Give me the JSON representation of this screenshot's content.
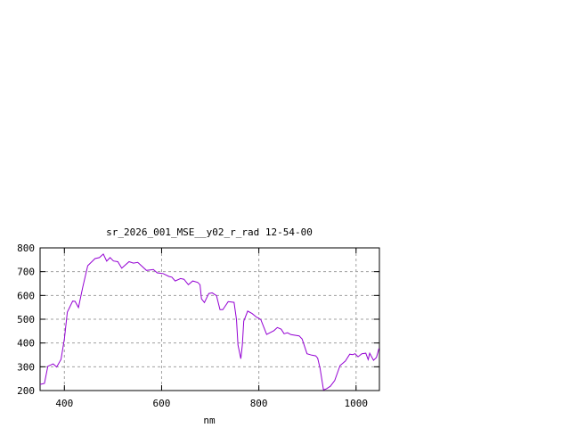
{
  "chart_data": {
    "type": "line",
    "title": "sr_2026_001_MSE__y02_r_rad 12-54-00",
    "xlabel": "nm",
    "ylabel": "",
    "xlim": [
      350,
      1048
    ],
    "ylim": [
      200,
      800
    ],
    "xticks": [
      400,
      600,
      800,
      1000
    ],
    "yticks": [
      200,
      300,
      400,
      500,
      600,
      700,
      800
    ],
    "grid": true,
    "line_color": "#9400d3",
    "series": [
      {
        "x": [
          350,
          359,
          366,
          377,
          384,
          393,
          400,
          406,
          417,
          422,
          429,
          438,
          448,
          463,
          472,
          480,
          487,
          494,
          501,
          510,
          518,
          533,
          542,
          551,
          569,
          583,
          591,
          603,
          615,
          621,
          628,
          639,
          646,
          655,
          664,
          674,
          679,
          682,
          688,
          697,
          704,
          713,
          720,
          726,
          737,
          749,
          754,
          757,
          763,
          766,
          769,
          777,
          786,
          795,
          804,
          816,
          831,
          838,
          846,
          852,
          859,
          866,
          883,
          889,
          899,
          909,
          917,
          921,
          926,
          933,
          939,
          947,
          956,
          967,
          978,
          987,
          993,
          998,
          1004,
          1012,
          1020,
          1025,
          1028,
          1036,
          1042,
          1047
        ],
        "y": [
          226,
          230,
          302,
          312,
          299,
          331,
          417,
          530,
          576,
          575,
          549,
          636,
          725,
          755,
          759,
          774,
          744,
          759,
          745,
          742,
          715,
          742,
          736,
          739,
          705,
          709,
          695,
          692,
          680,
          677,
          661,
          671,
          668,
          645,
          661,
          655,
          645,
          586,
          570,
          608,
          611,
          599,
          540,
          540,
          574,
          571,
          499,
          392,
          334,
          392,
          492,
          534,
          524,
          509,
          499,
          436,
          452,
          465,
          458,
          439,
          443,
          435,
          430,
          417,
          355,
          349,
          346,
          336,
          293,
          203,
          207,
          218,
          242,
          305,
          324,
          353,
          351,
          355,
          342,
          355,
          357,
          330,
          357,
          327,
          339,
          377
        ]
      }
    ]
  }
}
